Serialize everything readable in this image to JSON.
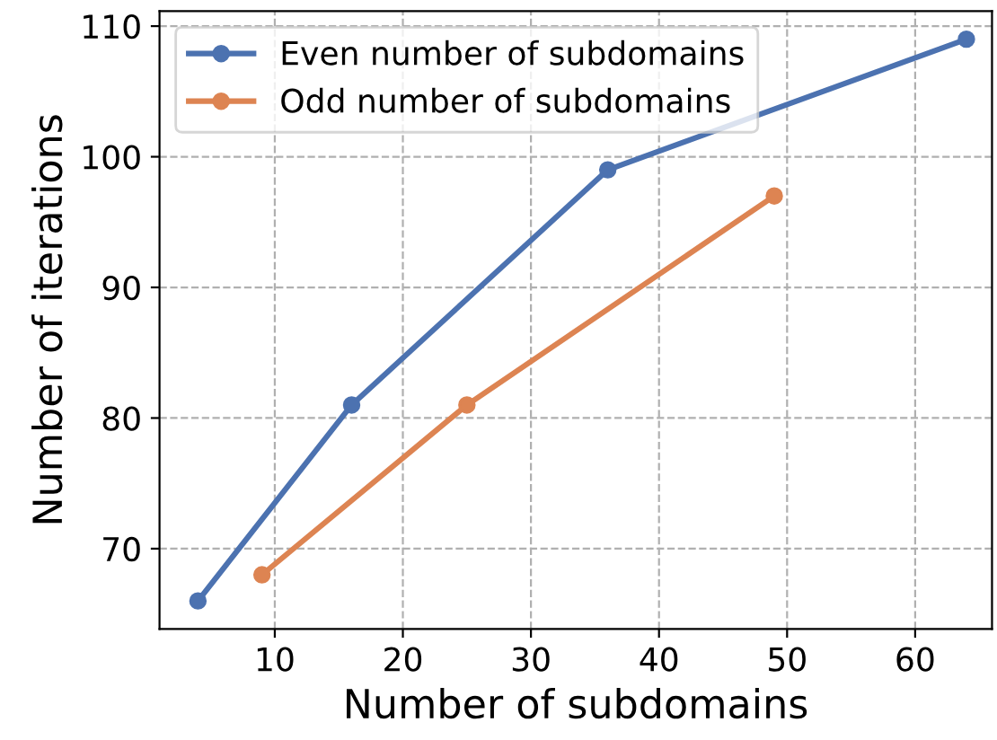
{
  "chart_data": {
    "type": "line",
    "xlabel": "Number of subdomains",
    "ylabel": "Number of iterations",
    "series": [
      {
        "name": "Even number of subdomains",
        "color": "#4c72b0",
        "x": [
          4,
          16,
          36,
          64
        ],
        "values": [
          66,
          81,
          99,
          109
        ]
      },
      {
        "name": "Odd number of subdomains",
        "color": "#dd8452",
        "x": [
          9,
          25,
          49
        ],
        "values": [
          68,
          81,
          97
        ]
      }
    ],
    "xlim": [
      1,
      66
    ],
    "xticks": [
      10,
      20,
      30,
      40,
      50,
      60
    ],
    "ylim": [
      63.85,
      111.15
    ],
    "yticks": [
      70,
      80,
      90,
      100,
      110
    ],
    "grid": true,
    "legend": "top left",
    "marker": "circle",
    "line_style": "solid"
  }
}
